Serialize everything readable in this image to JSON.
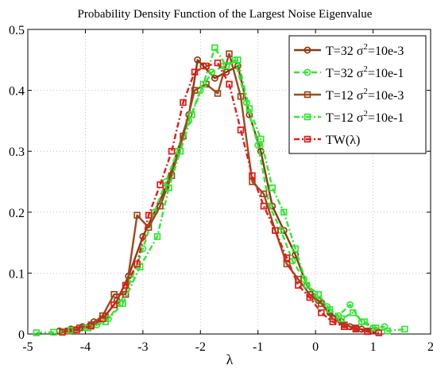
{
  "chart_data": {
    "type": "line",
    "title": "Probability Density Function of the Largest Noise Eigenvalue",
    "xlabel": "λ",
    "ylabel": "",
    "xlim": [
      -5,
      2
    ],
    "ylim": [
      0,
      0.5
    ],
    "xticks": [
      "-5",
      "-4",
      "-3",
      "-2",
      "-1",
      "0",
      "1",
      "2"
    ],
    "yticks": [
      "0",
      "0.1",
      "0.2",
      "0.3",
      "0.4",
      "0.5"
    ],
    "grid": true,
    "legend_position": "top-right",
    "series": [
      {
        "name": "T=32 σ²=10e-3",
        "label_main": "T=32 σ",
        "label_sup": "2",
        "label_tail": "=10e-3",
        "color": "#8B3A0F",
        "marker": "circle",
        "dash": "solid",
        "x": [
          -4.45,
          -4.25,
          -4.05,
          -3.85,
          -3.65,
          -3.45,
          -3.25,
          -3.0,
          -2.8,
          -2.6,
          -2.4,
          -2.2,
          -2.05,
          -1.95,
          -1.75,
          -1.55,
          -1.35,
          -1.15,
          -0.95,
          -0.75,
          -0.55,
          -0.35,
          -0.15,
          0.05,
          0.25,
          0.45,
          0.6,
          0.8,
          1.0
        ],
        "y": [
          0.005,
          0.008,
          0.012,
          0.02,
          0.03,
          0.055,
          0.095,
          0.16,
          0.2,
          0.24,
          0.3,
          0.36,
          0.45,
          0.44,
          0.42,
          0.43,
          0.44,
          0.36,
          0.3,
          0.21,
          0.17,
          0.13,
          0.08,
          0.055,
          0.035,
          0.02,
          0.012,
          0.008,
          0.005
        ]
      },
      {
        "name": "T=32 σ²=10e-1",
        "label_main": "T=32 σ",
        "label_sup": "2",
        "label_tail": "=10e-1",
        "color": "#33E633",
        "marker": "circle",
        "dash": "dash",
        "x": [
          -4.4,
          -4.2,
          -4.0,
          -3.8,
          -3.6,
          -3.4,
          -3.2,
          -3.0,
          -2.8,
          -2.6,
          -2.4,
          -2.2,
          -2.0,
          -1.8,
          -1.6,
          -1.4,
          -1.2,
          -1.0,
          -0.8,
          -0.6,
          -0.4,
          -0.2,
          0.0,
          0.2,
          0.4,
          0.6,
          0.8,
          1.0,
          1.2
        ],
        "y": [
          0.004,
          0.006,
          0.01,
          0.015,
          0.025,
          0.05,
          0.09,
          0.14,
          0.2,
          0.25,
          0.3,
          0.35,
          0.4,
          0.43,
          0.44,
          0.45,
          0.38,
          0.31,
          0.21,
          0.17,
          0.12,
          0.09,
          0.06,
          0.045,
          0.03,
          0.048,
          0.02,
          0.01,
          0.012
        ]
      },
      {
        "name": "T=12 σ²=10e-3",
        "label_main": "T=12 σ",
        "label_sup": "2",
        "label_tail": "=10e-3",
        "color": "#9C4A1E",
        "marker": "square",
        "dash": "solid",
        "x": [
          -4.3,
          -4.1,
          -3.9,
          -3.7,
          -3.5,
          -3.3,
          -3.1,
          -2.9,
          -2.7,
          -2.5,
          -2.3,
          -2.1,
          -1.9,
          -1.7,
          -1.5,
          -1.3,
          -1.1,
          -0.9,
          -0.7,
          -0.5,
          -0.3,
          -0.1,
          0.1,
          0.3,
          0.5,
          0.7,
          0.9
        ],
        "y": [
          0.005,
          0.01,
          0.015,
          0.03,
          0.065,
          0.065,
          0.195,
          0.175,
          0.21,
          0.26,
          0.325,
          0.4,
          0.41,
          0.395,
          0.46,
          0.39,
          0.25,
          0.23,
          0.17,
          0.115,
          0.09,
          0.065,
          0.05,
          0.025,
          0.015,
          0.01,
          0.005
        ]
      },
      {
        "name": "T=12 σ²=10e-1",
        "label_main": "T=12 σ",
        "label_sup": "2",
        "label_tail": "=10e-1",
        "color": "#33E633",
        "marker": "square",
        "dash": "dashdot",
        "x": [
          -4.85,
          -4.55,
          -4.25,
          -3.95,
          -3.65,
          -3.35,
          -3.05,
          -2.75,
          -2.55,
          -2.35,
          -2.15,
          -1.95,
          -1.75,
          -1.55,
          -1.35,
          -1.15,
          -0.95,
          -0.75,
          -0.55,
          -0.35,
          -0.15,
          0.05,
          0.25,
          0.45,
          0.65,
          0.85,
          1.05,
          1.25,
          1.55
        ],
        "y": [
          0.002,
          0.003,
          0.006,
          0.01,
          0.02,
          0.05,
          0.11,
          0.16,
          0.24,
          0.3,
          0.36,
          0.41,
          0.47,
          0.44,
          0.45,
          0.37,
          0.32,
          0.24,
          0.2,
          0.14,
          0.08,
          0.065,
          0.04,
          0.025,
          0.035,
          0.02,
          0.01,
          0.005,
          0.008
        ]
      },
      {
        "name": "TW(λ)",
        "label_main": "TW(λ)",
        "label_sup": "",
        "label_tail": "",
        "color": "#E61A1A",
        "marker": "square",
        "dash": "dashdot",
        "x": [
          -4.4,
          -4.15,
          -3.9,
          -3.7,
          -3.5,
          -3.3,
          -3.1,
          -2.9,
          -2.7,
          -2.5,
          -2.3,
          -2.1,
          -1.9,
          -1.7,
          -1.5,
          -1.3,
          -1.1,
          -0.9,
          -0.7,
          -0.5,
          -0.3,
          -0.1,
          0.1,
          0.3,
          0.5,
          0.7,
          0.9,
          1.1
        ],
        "y": [
          0.003,
          0.007,
          0.013,
          0.025,
          0.048,
          0.08,
          0.115,
          0.195,
          0.245,
          0.3,
          0.38,
          0.43,
          0.44,
          0.445,
          0.41,
          0.335,
          0.26,
          0.21,
          0.17,
          0.125,
          0.08,
          0.06,
          0.035,
          0.02,
          0.012,
          0.008,
          0.004,
          0.002
        ]
      }
    ]
  }
}
